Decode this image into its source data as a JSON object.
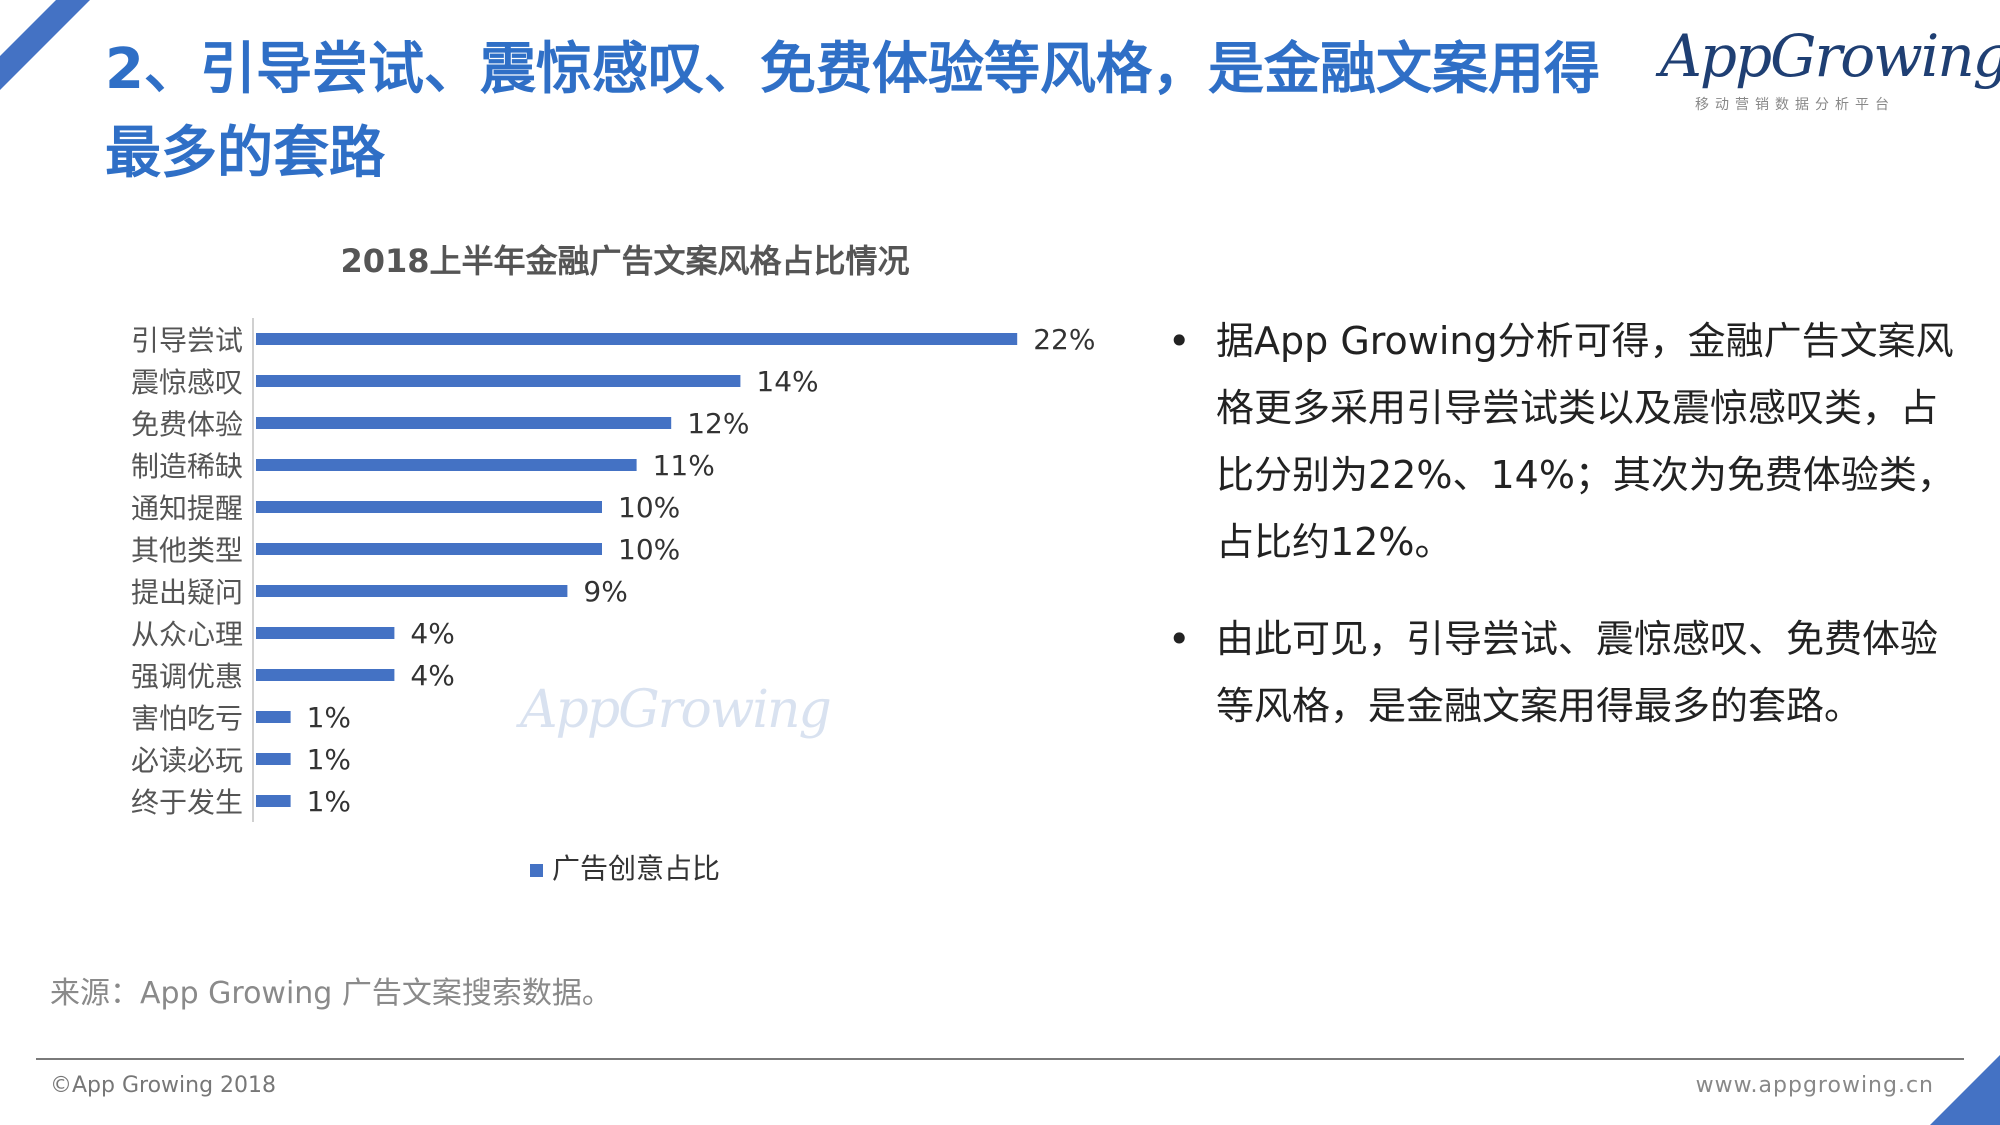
{
  "page": {
    "title": "2、引导尝试、震惊感叹、免费体验等风格，是金融文案用得最多的套路",
    "accent_color": "#4472c4"
  },
  "logo": {
    "text": "AppGrowing",
    "subtitle": "移动营销数据分析平台"
  },
  "chart_data": {
    "type": "bar",
    "orientation": "horizontal",
    "title": "2018上半年金融广告文案风格占比情况",
    "categories": [
      "引导尝试",
      "震惊感叹",
      "免费体验",
      "制造稀缺",
      "通知提醒",
      "其他类型",
      "提出疑问",
      "从众心理",
      "强调优惠",
      "害怕吃亏",
      "必读必玩",
      "终于发生"
    ],
    "series": [
      {
        "name": "广告创意占比",
        "values": [
          22,
          14,
          12,
          11,
          10,
          10,
          9,
          4,
          4,
          1,
          1,
          1
        ],
        "labels": [
          "22%",
          "14%",
          "12%",
          "11%",
          "10%",
          "10%",
          "9%",
          "4%",
          "4%",
          "1%",
          "1%",
          "1%"
        ],
        "color": "#4472c4"
      }
    ],
    "legend_position": "bottom",
    "grid": false
  },
  "bullets": [
    "据App Growing分析可得，金融广告文案风格更多采用引导尝试类以及震惊感叹类，占比分别为22%、14%；其次为免费体验类，占比约12%。",
    "由此可见，引导尝试、震惊感叹、免费体验等风格，是金融文案用得最多的套路。"
  ],
  "bullet_symbol": "•",
  "footer": {
    "source": "来源：App Growing 广告文案搜索数据。",
    "copyright": "©App Growing 2018",
    "url": "www.appgrowing.cn"
  }
}
